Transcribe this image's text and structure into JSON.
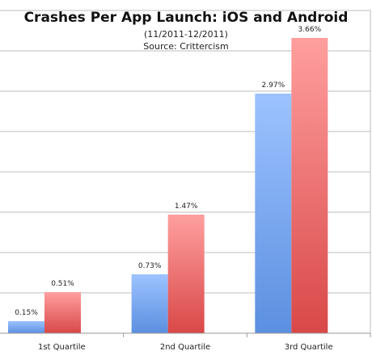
{
  "chart_data": {
    "type": "bar",
    "title": "Crashes Per App Launch: iOS and Android",
    "subtitle": "(11/2011-12/2011)",
    "source": "Source: Crittercism",
    "categories": [
      "1st Quartile",
      "2nd Quartile",
      "3rd Quartile"
    ],
    "series": [
      {
        "values": [
          0.15,
          0.73,
          2.97
        ],
        "labels": [
          "0.15%",
          "0.73%",
          "2.97%"
        ],
        "color": "#5b8fe0",
        "color_light": "#9dc3ff"
      },
      {
        "values": [
          0.51,
          1.47,
          3.66
        ],
        "labels": [
          "0.51%",
          "1.47%",
          "3.66%"
        ],
        "color": "#d94848",
        "color_light": "#ff9f9f"
      }
    ],
    "ylim": [
      0,
      4.0
    ],
    "grid": true,
    "legend": "none"
  }
}
